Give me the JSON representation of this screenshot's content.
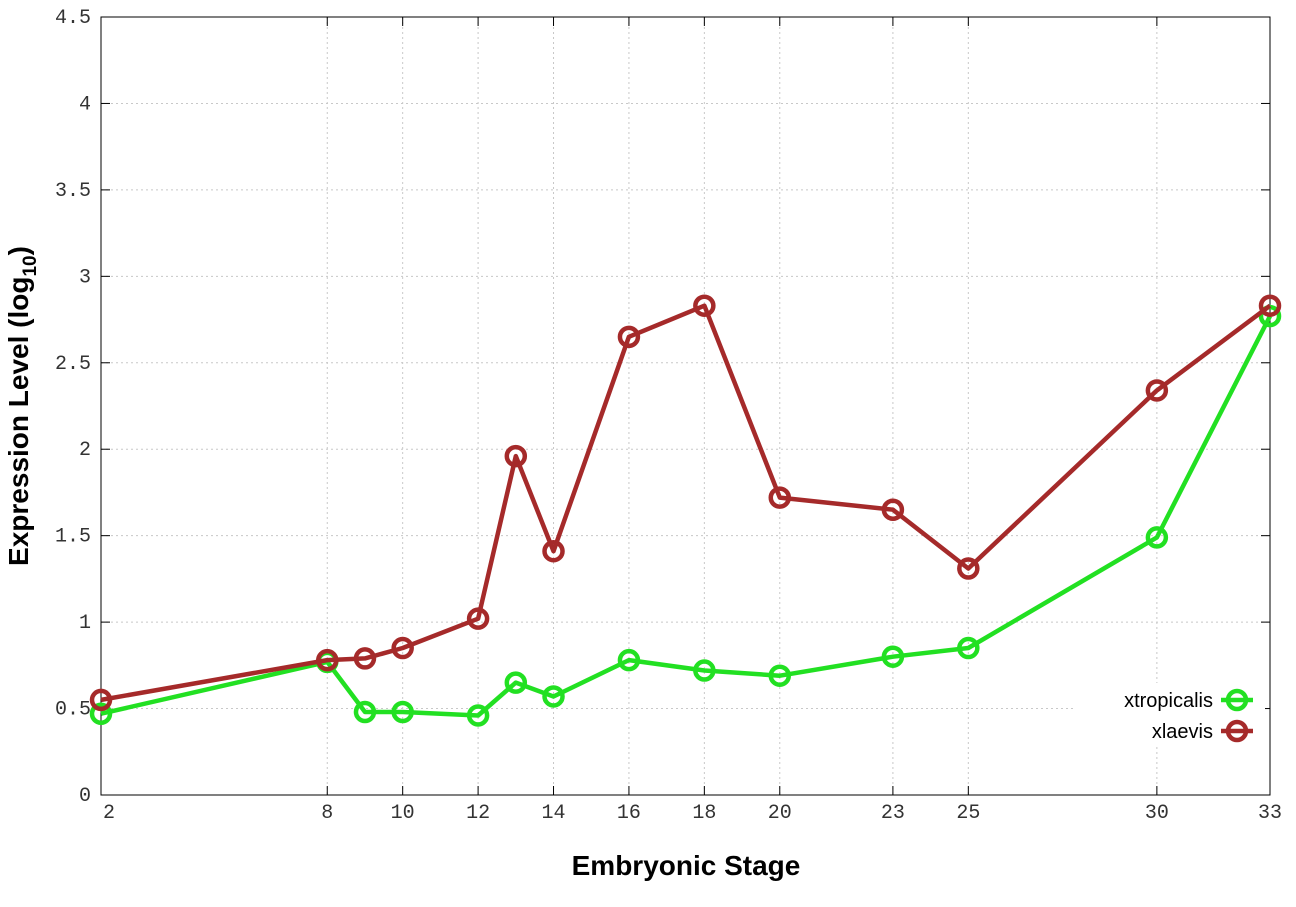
{
  "chart_data": {
    "type": "line",
    "xlabel": "Embryonic Stage",
    "ylabel": {
      "prefix": "Expression Level (log",
      "subscript": "10",
      "suffix": ")"
    },
    "x_ticks": [
      2,
      8,
      10,
      12,
      14,
      16,
      18,
      20,
      23,
      25,
      30,
      33
    ],
    "y_ticks": [
      "0",
      "0.5",
      "1",
      "1.5",
      "2",
      "2.5",
      "3",
      "3.5",
      "4",
      "4.5"
    ],
    "xlim": [
      2,
      33
    ],
    "ylim": [
      0,
      4.5
    ],
    "grid": true,
    "legend_position": "bottom-right",
    "series": [
      {
        "name": "xtropicalis",
        "color": "#22e022",
        "x": [
          2,
          8,
          9,
          10,
          12,
          13,
          14,
          16,
          18,
          20,
          23,
          25,
          30,
          33
        ],
        "y": [
          0.47,
          0.77,
          0.48,
          0.48,
          0.46,
          0.65,
          0.57,
          0.78,
          0.72,
          0.69,
          0.8,
          0.85,
          1.49,
          2.77
        ]
      },
      {
        "name": "xlaevis",
        "color": "#a52a2a",
        "x": [
          2,
          8,
          9,
          10,
          12,
          13,
          14,
          16,
          18,
          20,
          23,
          25,
          30,
          33
        ],
        "y": [
          0.55,
          0.78,
          0.79,
          0.85,
          1.02,
          1.96,
          1.41,
          2.65,
          2.83,
          1.72,
          1.65,
          1.31,
          2.34,
          2.83
        ]
      }
    ]
  }
}
